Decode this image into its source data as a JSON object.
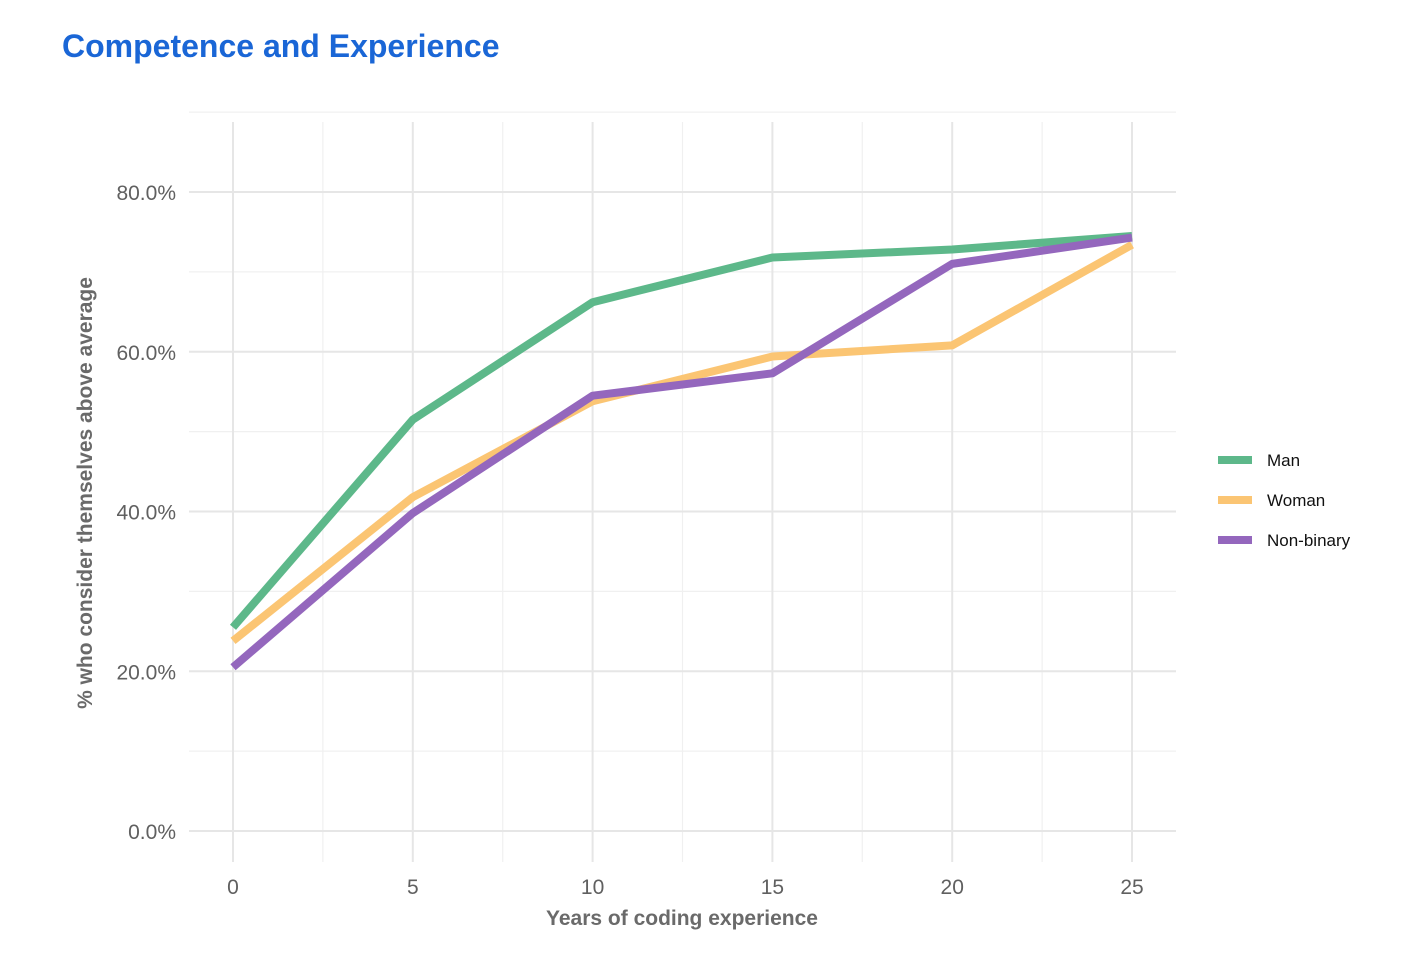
{
  "chart_data": {
    "type": "line",
    "title": "Competence and Experience",
    "xlabel": "Years of coding experience",
    "ylabel": "% who consider themselves above average",
    "x": [
      0,
      5,
      10,
      15,
      20,
      25
    ],
    "xlim": [
      0,
      25
    ],
    "ylim": [
      0,
      80
    ],
    "x_ticks": [
      "0",
      "5",
      "10",
      "15",
      "20",
      "25"
    ],
    "y_ticks": [
      "0.0%",
      "20.0%",
      "40.0%",
      "60.0%",
      "80.0%"
    ],
    "grid": true,
    "legend_position": "right",
    "series": [
      {
        "name": "Man",
        "color": "#5db88a",
        "values": [
          25.5,
          51.5,
          66.2,
          71.8,
          72.8,
          74.5
        ]
      },
      {
        "name": "Woman",
        "color": "#fbc573",
        "values": [
          23.8,
          41.8,
          53.8,
          59.4,
          60.8,
          73.4
        ]
      },
      {
        "name": "Non-binary",
        "color": "#9467bd",
        "values": [
          20.5,
          39.8,
          54.5,
          57.3,
          71.0,
          74.3
        ]
      }
    ]
  }
}
